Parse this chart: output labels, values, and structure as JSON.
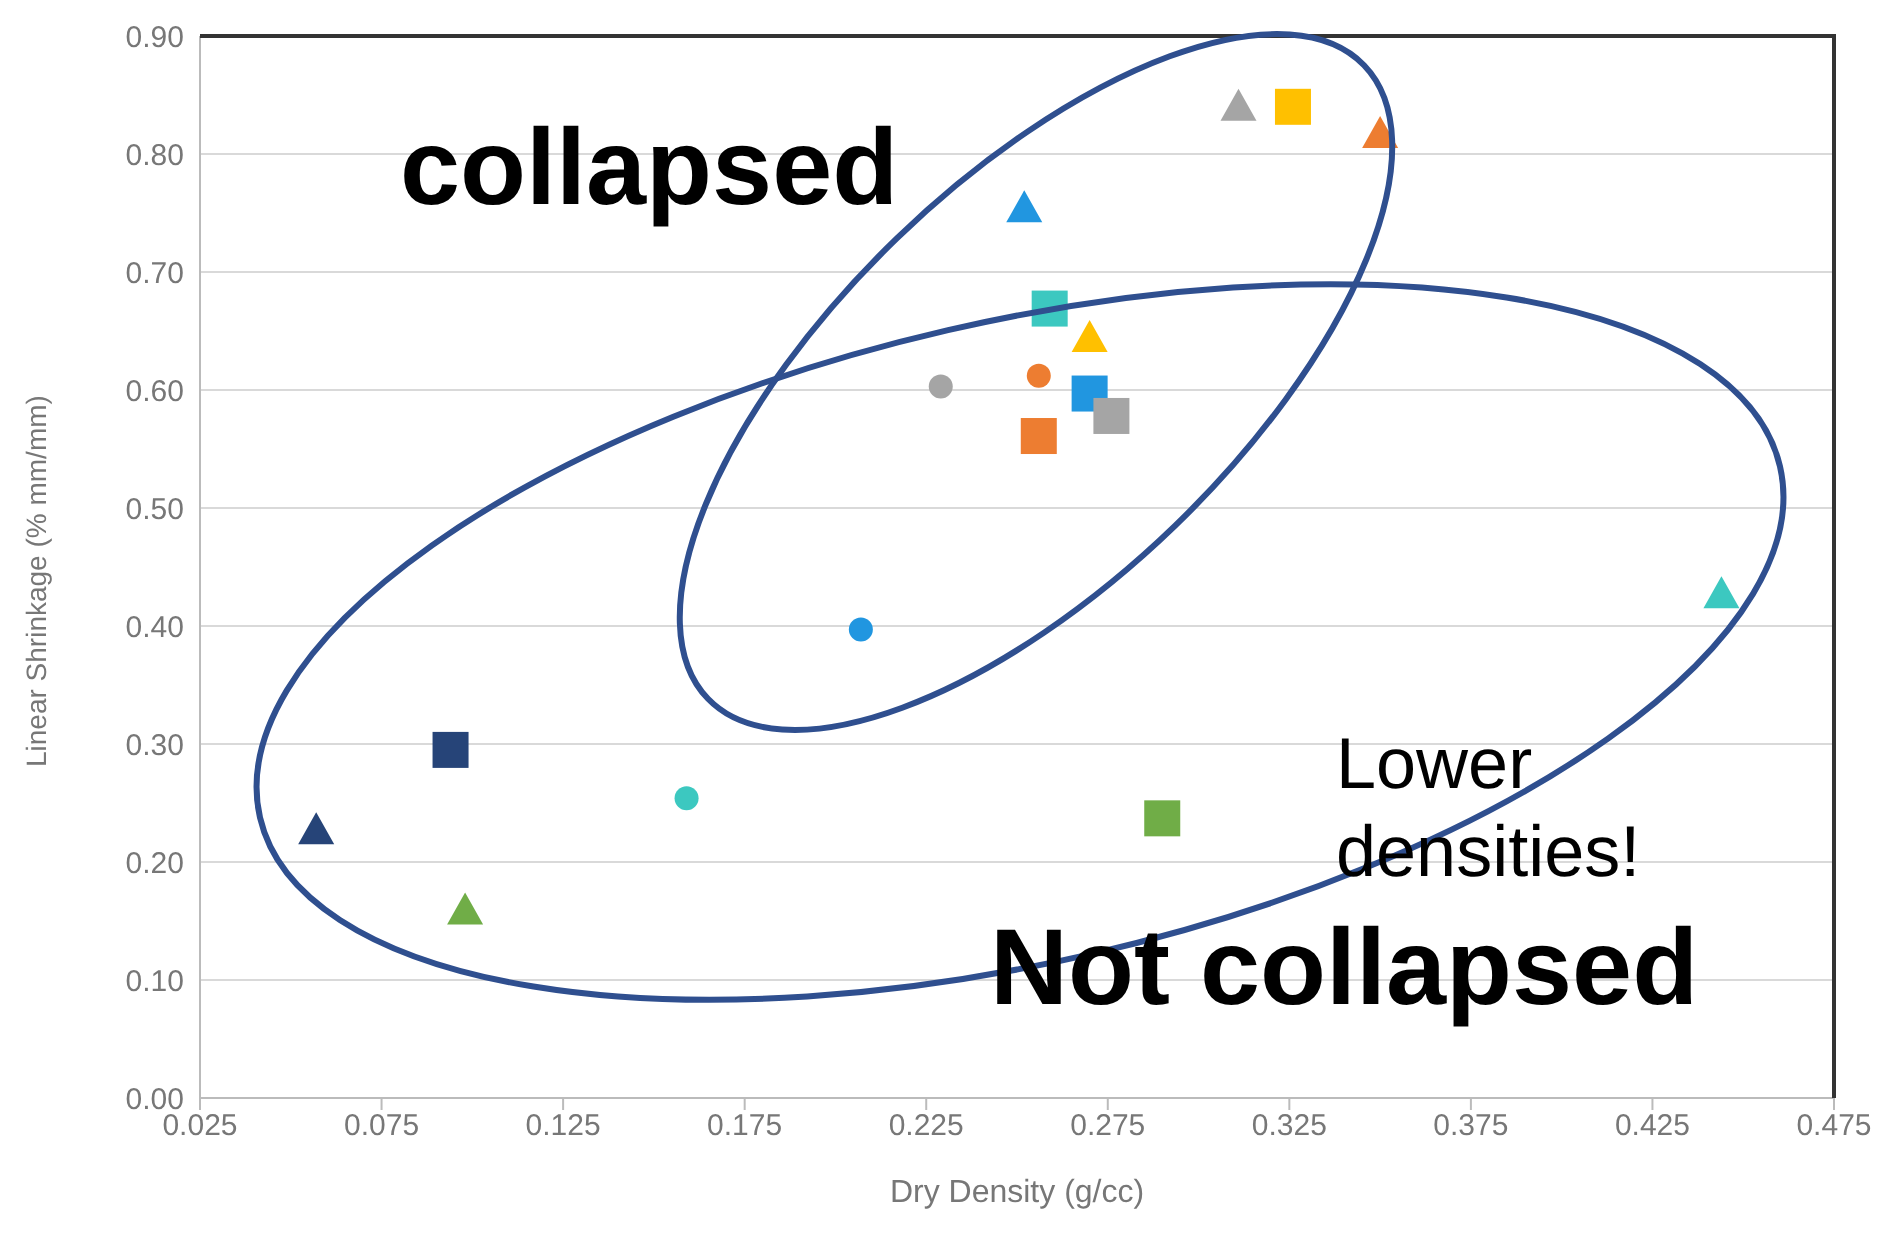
{
  "chart_data": {
    "type": "scatter",
    "xlabel": "Dry Density (g/cc)",
    "ylabel": "Linear Shrinkage (% mm/mm)",
    "xlim": [
      0.025,
      0.475
    ],
    "xticks": [
      {
        "value": 0.025,
        "label": "0.025"
      },
      {
        "value": 0.075,
        "label": "0.075"
      },
      {
        "value": 0.125,
        "label": "0.125"
      },
      {
        "value": 0.175,
        "label": "0.175"
      },
      {
        "value": 0.225,
        "label": "0.225"
      },
      {
        "value": 0.275,
        "label": "0.275"
      },
      {
        "value": 0.325,
        "label": "0.325"
      },
      {
        "value": 0.375,
        "label": "0.375"
      },
      {
        "value": 0.425,
        "label": "0.425"
      },
      {
        "value": 0.475,
        "label": "0.475"
      }
    ],
    "ylim": [
      0,
      0.9
    ],
    "yticks": [
      {
        "value": 0,
        "label": "0.00"
      },
      {
        "value": 0.1,
        "label": "0.10"
      },
      {
        "value": 0.2,
        "label": "0.20"
      },
      {
        "value": 0.3,
        "label": "0.30"
      },
      {
        "value": 0.4,
        "label": "0.40"
      },
      {
        "value": 0.5,
        "label": "0.50"
      },
      {
        "value": 0.6,
        "label": "0.60"
      },
      {
        "value": 0.7,
        "label": "0.70"
      },
      {
        "value": 0.8,
        "label": "0.80"
      },
      {
        "value": 0.9,
        "label": "0.90"
      }
    ],
    "grid": "y",
    "legend": false,
    "annotations": [
      "collapsed",
      "Not collapsed",
      "Lower densities!"
    ],
    "series": [
      {
        "color": "#a5a5a5",
        "marker": "triangle",
        "x": [
          0.311
        ],
        "values": [
          0.84
        ]
      },
      {
        "color": "#ffc000",
        "marker": "square",
        "x": [
          0.326
        ],
        "values": [
          0.84
        ]
      },
      {
        "color": "#ed7d31",
        "marker": "triangle",
        "x": [
          0.35
        ],
        "values": [
          0.817
        ]
      },
      {
        "color": "#2196e0",
        "marker": "triangle",
        "x": [
          0.252
        ],
        "values": [
          0.754
        ]
      },
      {
        "color": "#3cc8c0",
        "marker": "square",
        "x": [
          0.259
        ],
        "values": [
          0.669
        ]
      },
      {
        "color": "#ffc000",
        "marker": "triangle",
        "x": [
          0.27
        ],
        "values": [
          0.644
        ]
      },
      {
        "color": "#a5a5a5",
        "marker": "circle",
        "x": [
          0.229
        ],
        "values": [
          0.603
        ]
      },
      {
        "color": "#ed7d31",
        "marker": "circle",
        "x": [
          0.256
        ],
        "values": [
          0.612
        ]
      },
      {
        "color": "#2196e0",
        "marker": "square",
        "x": [
          0.27
        ],
        "values": [
          0.597
        ]
      },
      {
        "color": "#a5a5a5",
        "marker": "square",
        "x": [
          0.276
        ],
        "values": [
          0.578
        ]
      },
      {
        "color": "#ed7d31",
        "marker": "square",
        "x": [
          0.256
        ],
        "values": [
          0.561
        ]
      },
      {
        "color": "#2196e0",
        "marker": "circle",
        "x": [
          0.207
        ],
        "values": [
          0.397
        ]
      },
      {
        "color": "#3cc8c0",
        "marker": "triangle",
        "x": [
          0.444
        ],
        "values": [
          0.427
        ]
      },
      {
        "color": "#264478",
        "marker": "square",
        "x": [
          0.094
        ],
        "values": [
          0.295
        ]
      },
      {
        "color": "#264478",
        "marker": "triangle",
        "x": [
          0.057
        ],
        "values": [
          0.227
        ]
      },
      {
        "color": "#3cc8c0",
        "marker": "circle",
        "x": [
          0.159
        ],
        "values": [
          0.254
        ]
      },
      {
        "color": "#70ad47",
        "marker": "triangle",
        "x": [
          0.098
        ],
        "values": [
          0.159
        ]
      },
      {
        "color": "#70ad47",
        "marker": "square",
        "x": [
          0.29
        ],
        "values": [
          0.237
        ]
      }
    ]
  }
}
